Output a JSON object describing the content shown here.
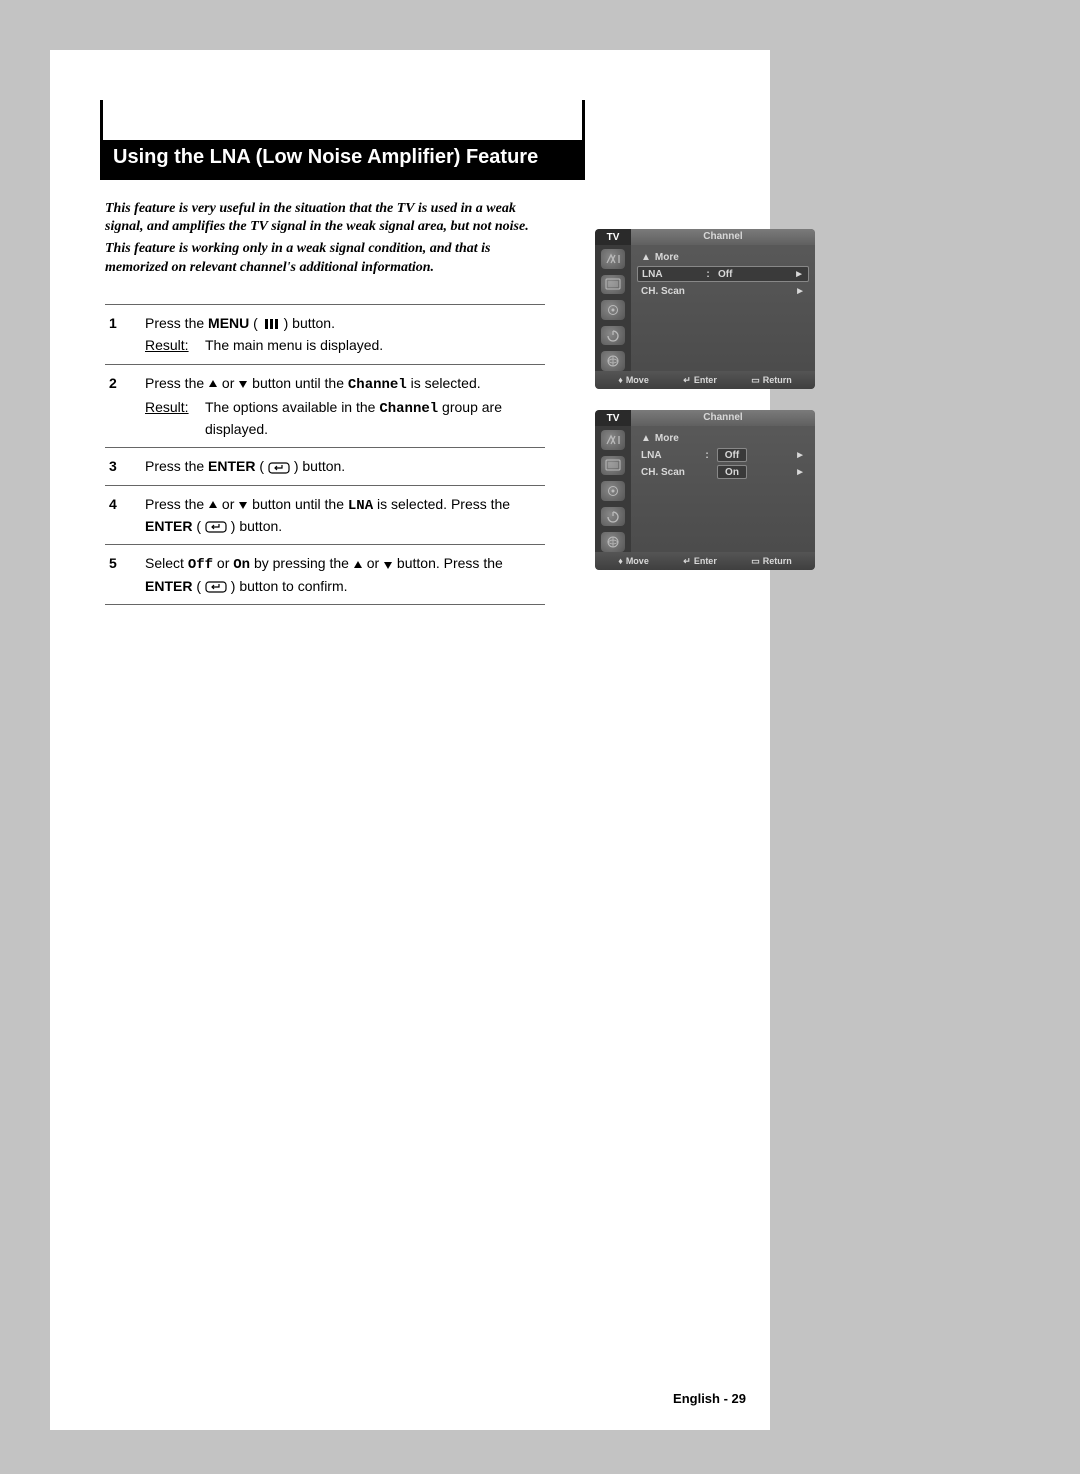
{
  "title": "Using the LNA (Low Noise Amplifier) Feature",
  "intro": {
    "p1": "This feature is very useful in the situation that the TV is used in a weak signal, and amplifies the TV signal in the weak signal area, but not noise.",
    "p2": "This feature is working only in a weak signal condition, and that is memorized on relevant channel's additional information."
  },
  "steps": [
    {
      "num": "1",
      "segs": [
        {
          "t": "Press the "
        },
        {
          "t": "MENU",
          "cls": "bold"
        },
        {
          "t": " ( "
        },
        {
          "icon": "menu"
        },
        {
          "t": " ) button."
        }
      ],
      "result": "The main menu is displayed."
    },
    {
      "num": "2",
      "segs": [
        {
          "t": "Press the "
        },
        {
          "icon": "up"
        },
        {
          "t": " or "
        },
        {
          "icon": "down"
        },
        {
          "t": " button until the "
        },
        {
          "t": "Channel",
          "cls": "mono"
        },
        {
          "t": " is selected."
        }
      ],
      "result_segs": [
        {
          "t": "The options available in the "
        },
        {
          "t": "Channel",
          "cls": "mono"
        },
        {
          "t": " group are displayed."
        }
      ]
    },
    {
      "num": "3",
      "segs": [
        {
          "t": "Press the "
        },
        {
          "t": "ENTER",
          "cls": "bold"
        },
        {
          "t": " ( "
        },
        {
          "icon": "enter"
        },
        {
          "t": " ) button."
        }
      ]
    },
    {
      "num": "4",
      "segs": [
        {
          "t": "Press the "
        },
        {
          "icon": "up"
        },
        {
          "t": " or "
        },
        {
          "icon": "down"
        },
        {
          "t": " button until the "
        },
        {
          "t": "LNA",
          "cls": "mono"
        },
        {
          "t": " is selected. Press the "
        },
        {
          "t": "ENTER",
          "cls": "bold"
        },
        {
          "t": " ( "
        },
        {
          "icon": "enter"
        },
        {
          "t": " ) button."
        }
      ]
    },
    {
      "num": "5",
      "segs": [
        {
          "t": "Select "
        },
        {
          "t": "Off",
          "cls": "mono"
        },
        {
          "t": " or "
        },
        {
          "t": "On",
          "cls": "mono"
        },
        {
          "t": "  by pressing the "
        },
        {
          "icon": "up"
        },
        {
          "t": " or "
        },
        {
          "icon": "down"
        },
        {
          "t": " button. Press the "
        },
        {
          "t": "ENTER",
          "cls": "bold"
        },
        {
          "t": " ( "
        },
        {
          "icon": "enter"
        },
        {
          "t": " ) button to confirm."
        }
      ]
    }
  ],
  "result_label": "Result",
  "osd": {
    "tv": "TV",
    "title": "Channel",
    "more": "More",
    "lna": "LNA",
    "chscan": "CH. Scan",
    "off": "Off",
    "on": "On",
    "move": "Move",
    "enter": "Enter",
    "return": "Return",
    "colors": {
      "bg_top": "#5a5a5a",
      "header_bg": "#2a2a2a",
      "text": "#d8d8d8",
      "sel_bg": "#3a3a3a",
      "sel_border": "#888888"
    }
  },
  "footer": "English - 29"
}
